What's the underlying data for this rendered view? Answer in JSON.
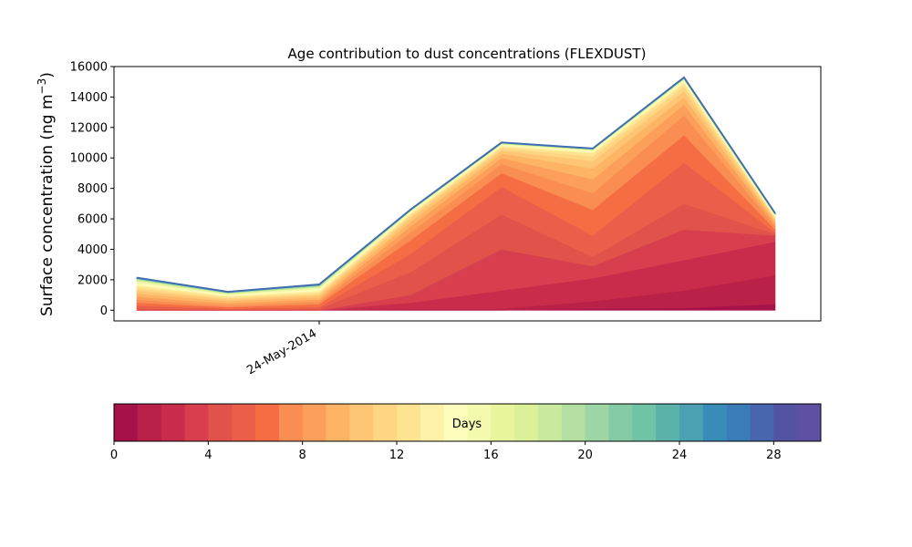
{
  "chart_data": {
    "type": "area",
    "title": "Age contribution to dust concentrations (FLEXDUST)",
    "ylabel": "Surface concentration (ng m",
    "ylabel_sup": "−3",
    "ylabel_close": ")",
    "xlabel": "",
    "ylim": [
      -700,
      16000
    ],
    "yticks": [
      0,
      2000,
      4000,
      6000,
      8000,
      10000,
      12000,
      14000,
      16000
    ],
    "x": [
      "2014-05-22",
      "2014-05-23",
      "2014-05-24",
      "2014-05-25",
      "2014-05-26",
      "2014-05-27",
      "2014-05-28",
      "2014-05-29"
    ],
    "xlim": [
      "2014-05-21 18:00",
      "2014-05-29 12:00"
    ],
    "xticks": [
      {
        "date": "2014-05-24",
        "label": "24-May-2014"
      }
    ],
    "stack_note": "cumulative concentration by dust age; each row = cumulative total up to that age day",
    "cumulative_levels": [
      [
        0,
        0,
        0,
        0,
        0,
        100,
        150,
        400
      ],
      [
        0,
        0,
        0,
        100,
        100,
        600,
        1300,
        2300
      ],
      [
        0,
        0,
        0,
        500,
        1300,
        2100,
        3300,
        4500
      ],
      [
        0,
        0,
        0,
        1000,
        4000,
        2900,
        5300,
        4900
      ],
      [
        100,
        50,
        100,
        2500,
        6300,
        3500,
        7000,
        5000
      ],
      [
        300,
        100,
        200,
        3700,
        8100,
        4900,
        9700,
        5100
      ],
      [
        500,
        200,
        400,
        4600,
        9000,
        6600,
        11500,
        5300
      ],
      [
        700,
        300,
        550,
        5100,
        9600,
        7700,
        12800,
        5500
      ],
      [
        900,
        450,
        700,
        5500,
        10000,
        8600,
        13500,
        5700
      ],
      [
        1100,
        600,
        850,
        5800,
        10300,
        9300,
        14000,
        5850
      ],
      [
        1300,
        700,
        1000,
        6050,
        10500,
        9800,
        14400,
        5950
      ],
      [
        1450,
        800,
        1100,
        6200,
        10650,
        10100,
        14700,
        6050
      ],
      [
        1600,
        900,
        1200,
        6300,
        10750,
        10300,
        14900,
        6120
      ],
      [
        1700,
        950,
        1300,
        6380,
        10820,
        10400,
        15000,
        6180
      ],
      [
        1800,
        1000,
        1380,
        6440,
        10870,
        10460,
        15080,
        6220
      ],
      [
        1870,
        1050,
        1450,
        6480,
        10900,
        10500,
        15130,
        6250
      ],
      [
        1930,
        1080,
        1500,
        6510,
        10920,
        10530,
        15170,
        6270
      ],
      [
        1980,
        1110,
        1540,
        6530,
        10940,
        10550,
        15200,
        6290
      ],
      [
        2010,
        1130,
        1570,
        6545,
        10955,
        10565,
        15220,
        6305
      ],
      [
        2040,
        1150,
        1600,
        6555,
        10965,
        10575,
        15235,
        6315
      ],
      [
        2060,
        1160,
        1620,
        6565,
        10975,
        10585,
        15245,
        6325
      ],
      [
        2080,
        1170,
        1640,
        6575,
        10985,
        10592,
        15255,
        6335
      ],
      [
        2095,
        1180,
        1655,
        6582,
        10990,
        10598,
        15262,
        6342
      ],
      [
        2105,
        1188,
        1665,
        6588,
        10995,
        10603,
        15268,
        6348
      ],
      [
        2115,
        1195,
        1675,
        6593,
        11000,
        10607,
        15273,
        6353
      ],
      [
        2122,
        1200,
        1682,
        6597,
        11003,
        10610,
        15277,
        6357
      ],
      [
        2128,
        1204,
        1688,
        6600,
        11006,
        10613,
        15280,
        6360
      ],
      [
        2133,
        1207,
        1692,
        6602,
        11008,
        10615,
        15282,
        6362
      ],
      [
        2137,
        1209,
        1695,
        6604,
        11010,
        10617,
        15284,
        6364
      ],
      [
        2140,
        1210,
        1697,
        6605,
        11011,
        10618,
        15285,
        6365
      ]
    ],
    "colorbar": {
      "label": "Days",
      "min": 0,
      "max": 30,
      "ticks": [
        0,
        4,
        8,
        12,
        16,
        20,
        24,
        28
      ],
      "colors": [
        "#a7114a",
        "#ba2148",
        "#c92c4b",
        "#d73e4e",
        "#e1524a",
        "#eb5e4a",
        "#f46d43",
        "#f98d52",
        "#fb9f5a",
        "#fdb465",
        "#fec575",
        "#fed683",
        "#fee391",
        "#fff2a8",
        "#fdfebc",
        "#f4faae",
        "#e9f59d",
        "#dcf09a",
        "#c9e99e",
        "#b3e0a2",
        "#9dd5a4",
        "#84cba5",
        "#6ec4a4",
        "#5bb2a8",
        "#4ba0b1",
        "#3a8cb8",
        "#3a7cb8",
        "#4766ad",
        "#5353a3",
        "#5e4fa2"
      ]
    }
  }
}
